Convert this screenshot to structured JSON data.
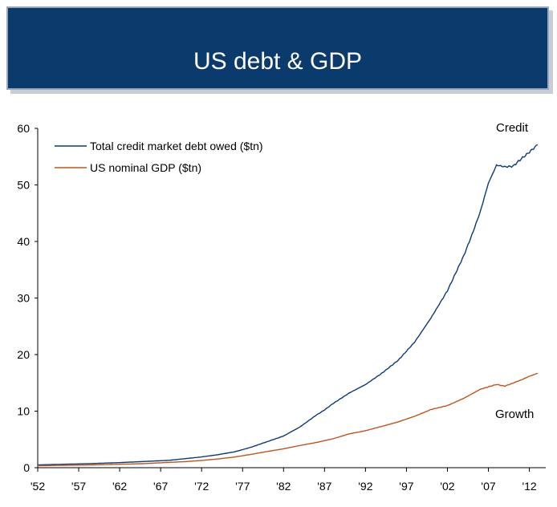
{
  "title": "US debt & GDP",
  "chart_data": {
    "type": "line",
    "title": "US debt & GDP",
    "xlabel": "",
    "ylabel": "",
    "ylim": [
      0,
      60
    ],
    "xlim": [
      1952,
      2014
    ],
    "yticks": [
      "0",
      "10",
      "20",
      "30",
      "40",
      "50",
      "60"
    ],
    "xticks": [
      {
        "year": 1952,
        "label": "'52"
      },
      {
        "year": 1957,
        "label": "'57"
      },
      {
        "year": 1962,
        "label": "'62"
      },
      {
        "year": 1967,
        "label": "'67"
      },
      {
        "year": 1972,
        "label": "'72"
      },
      {
        "year": 1977,
        "label": "'77"
      },
      {
        "year": 1982,
        "label": "'82"
      },
      {
        "year": 1987,
        "label": "'87"
      },
      {
        "year": 1992,
        "label": "'92"
      },
      {
        "year": 1997,
        "label": "'97"
      },
      {
        "year": 2002,
        "label": "'02"
      },
      {
        "year": 2007,
        "label": "'07"
      },
      {
        "year": 2012,
        "label": "'12"
      }
    ],
    "legend_position": "top-left",
    "grid": false,
    "series": [
      {
        "name": "Total credit market debt owed ($tn)",
        "color": "#0b3a7a",
        "x": [
          1952,
          1955,
          1958,
          1960,
          1962,
          1965,
          1968,
          1970,
          1972,
          1974,
          1976,
          1978,
          1980,
          1982,
          1984,
          1986,
          1987,
          1988,
          1990,
          1992,
          1994,
          1996,
          1998,
          2000,
          2002,
          2004,
          2005,
          2006,
          2007,
          2008,
          2009,
          2010,
          2011,
          2012,
          2013
        ],
        "y": [
          0.5,
          0.6,
          0.7,
          0.8,
          0.9,
          1.1,
          1.3,
          1.6,
          1.9,
          2.3,
          2.8,
          3.6,
          4.6,
          5.6,
          7.2,
          9.3,
          10.2,
          11.3,
          13.2,
          14.7,
          16.7,
          19.0,
          22.2,
          26.5,
          31.3,
          37.5,
          41.2,
          45.2,
          50.3,
          53.5,
          53.2,
          53.3,
          54.6,
          55.8,
          57.1
        ]
      },
      {
        "name": "US nominal GDP ($tn)",
        "color": "#c0541a",
        "x": [
          1952,
          1955,
          1958,
          1960,
          1962,
          1965,
          1968,
          1970,
          1972,
          1974,
          1976,
          1978,
          1980,
          1982,
          1984,
          1986,
          1988,
          1990,
          1992,
          1994,
          1996,
          1998,
          2000,
          2002,
          2004,
          2006,
          2008,
          2009,
          2010,
          2011,
          2012,
          2013
        ],
        "y": [
          0.35,
          0.42,
          0.47,
          0.53,
          0.61,
          0.72,
          0.94,
          1.07,
          1.28,
          1.55,
          1.88,
          2.35,
          2.86,
          3.34,
          3.93,
          4.46,
          5.1,
          5.98,
          6.54,
          7.31,
          8.1,
          9.09,
          10.29,
          10.98,
          12.27,
          13.86,
          14.72,
          14.42,
          14.96,
          15.52,
          16.16,
          16.69
        ]
      }
    ],
    "annotations": [
      "Credit",
      "Growth"
    ]
  }
}
